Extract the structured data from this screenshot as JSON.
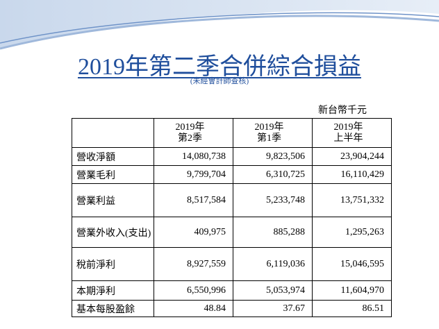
{
  "header": {
    "title": "2019年第二季合併綜合損益",
    "subtitle": "(未經會計師查核)"
  },
  "table": {
    "unit": "新台幣千元",
    "columns": [
      [
        "2019年",
        "第2季"
      ],
      [
        "2019年",
        "第1季"
      ],
      [
        "2019年",
        "上半年"
      ]
    ],
    "rows": [
      [
        "營收淨額",
        "14,080,738",
        "9,823,506",
        "23,904,244"
      ],
      [
        "營業毛利",
        "9,799,704",
        "6,310,725",
        "16,110,429"
      ],
      [
        "營業利益",
        "8,517,584",
        "5,233,748",
        "13,751,332"
      ],
      [
        "營業外收入(支出)",
        "409,975",
        "885,288",
        "1,295,263"
      ],
      [
        "稅前淨利",
        "8,927,559",
        "6,119,036",
        "15,046,595"
      ],
      [
        "本期淨利",
        "6,550,996",
        "5,053,974",
        "11,604,970"
      ],
      [
        "基本每股盈餘",
        "48.84",
        "37.67",
        "86.51"
      ]
    ]
  }
}
